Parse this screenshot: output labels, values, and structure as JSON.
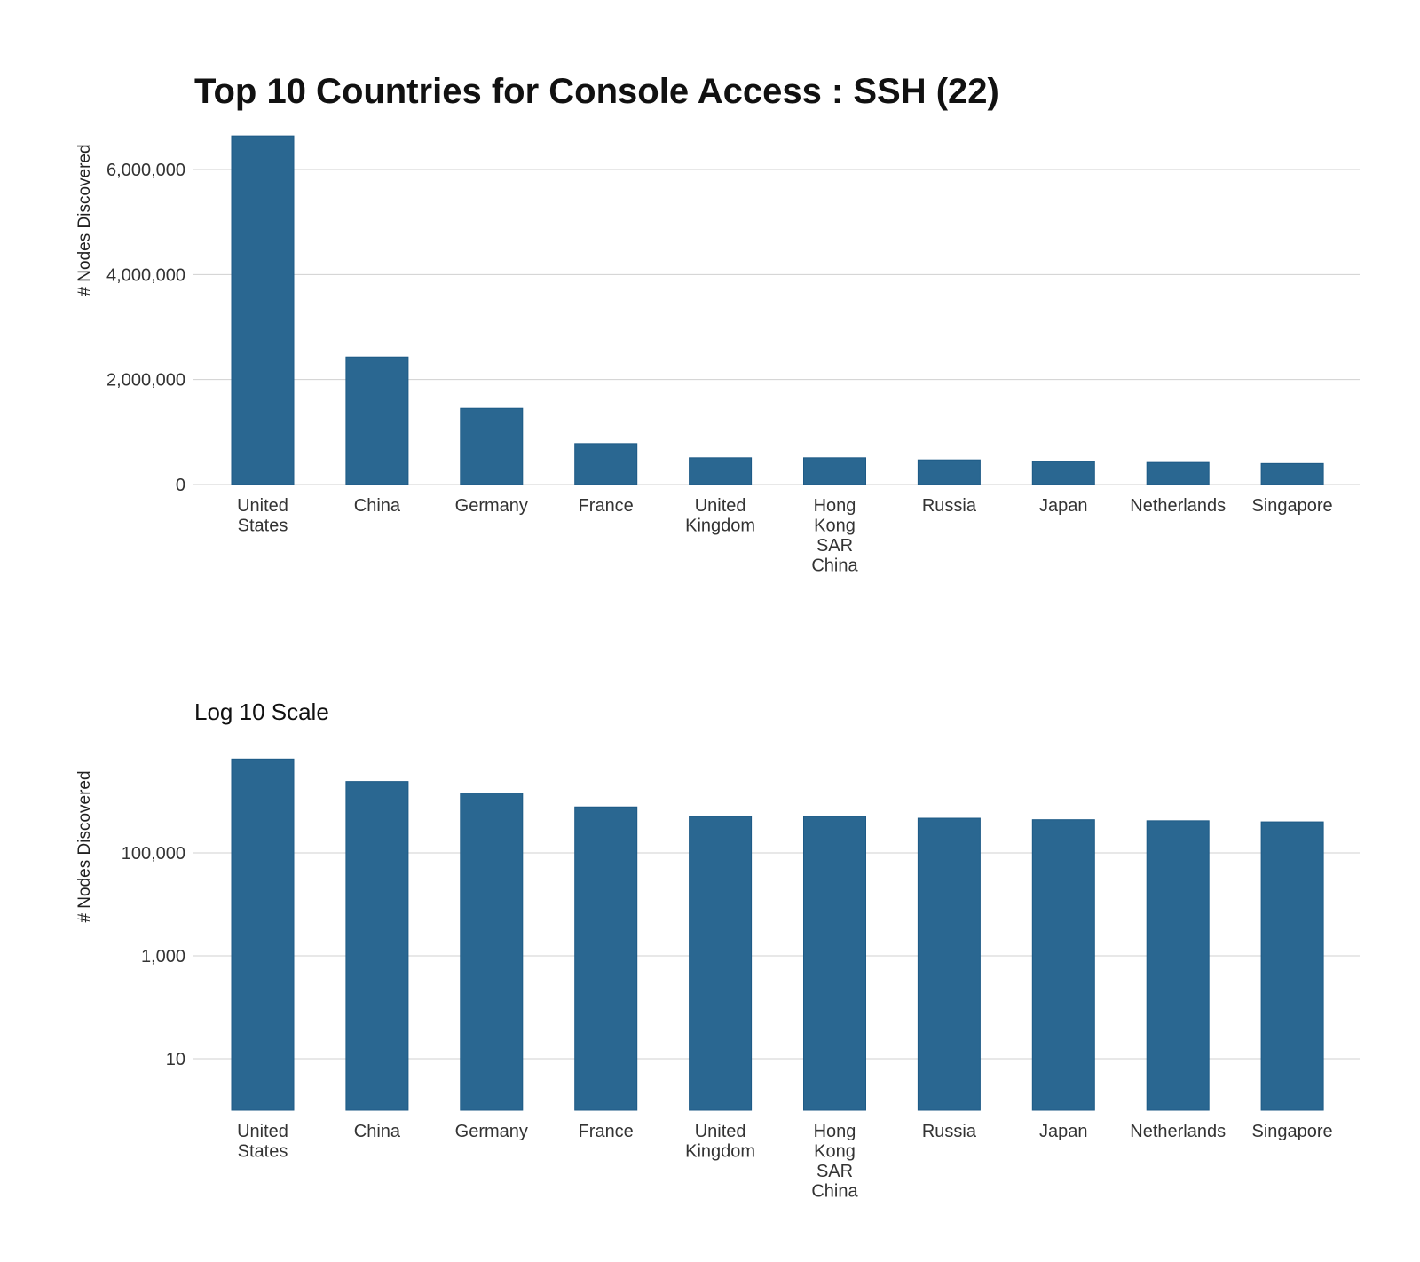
{
  "chart_data": [
    {
      "type": "bar",
      "title": "Top 10 Countries for Console Access : SSH (22)",
      "xlabel": "",
      "ylabel": "# Nodes Discovered",
      "categories": [
        "United States",
        "China",
        "Germany",
        "France",
        "United Kingdom",
        "Hong Kong SAR China",
        "Russia",
        "Japan",
        "Netherlands",
        "Singapore"
      ],
      "category_lines": [
        [
          "United",
          "States"
        ],
        [
          "China"
        ],
        [
          "Germany"
        ],
        [
          "France"
        ],
        [
          "United",
          "Kingdom"
        ],
        [
          "Hong",
          "Kong",
          "SAR",
          "China"
        ],
        [
          "Russia"
        ],
        [
          "Japan"
        ],
        [
          "Netherlands"
        ],
        [
          "Singapore"
        ]
      ],
      "values": [
        6640000,
        2430000,
        1450000,
        780000,
        510000,
        510000,
        470000,
        440000,
        420000,
        400000
      ],
      "ylim": [
        0,
        6650000
      ],
      "yticks": [
        0,
        2000000,
        4000000,
        6000000
      ],
      "ytick_labels": [
        "0",
        "2,000,000",
        "4,000,000",
        "6,000,000"
      ],
      "scale": "linear",
      "grid": true,
      "color": "#2a6791"
    },
    {
      "type": "bar",
      "title": "Log 10 Scale",
      "xlabel": "",
      "ylabel": "# Nodes Discovered",
      "categories": [
        "United States",
        "China",
        "Germany",
        "France",
        "United Kingdom",
        "Hong Kong SAR China",
        "Russia",
        "Japan",
        "Netherlands",
        "Singapore"
      ],
      "category_lines": [
        [
          "United",
          "States"
        ],
        [
          "China"
        ],
        [
          "Germany"
        ],
        [
          "France"
        ],
        [
          "United",
          "Kingdom"
        ],
        [
          "Hong",
          "Kong",
          "SAR",
          "China"
        ],
        [
          "Russia"
        ],
        [
          "Japan"
        ],
        [
          "Netherlands"
        ],
        [
          "Singapore"
        ]
      ],
      "values": [
        6640000,
        2430000,
        1450000,
        780000,
        510000,
        510000,
        470000,
        440000,
        420000,
        400000
      ],
      "ylim": [
        1,
        6640000
      ],
      "yticks": [
        10,
        1000,
        100000
      ],
      "ytick_labels": [
        "10",
        "1,000",
        "100,000"
      ],
      "scale": "log10",
      "grid": true,
      "color": "#2a6791"
    }
  ]
}
